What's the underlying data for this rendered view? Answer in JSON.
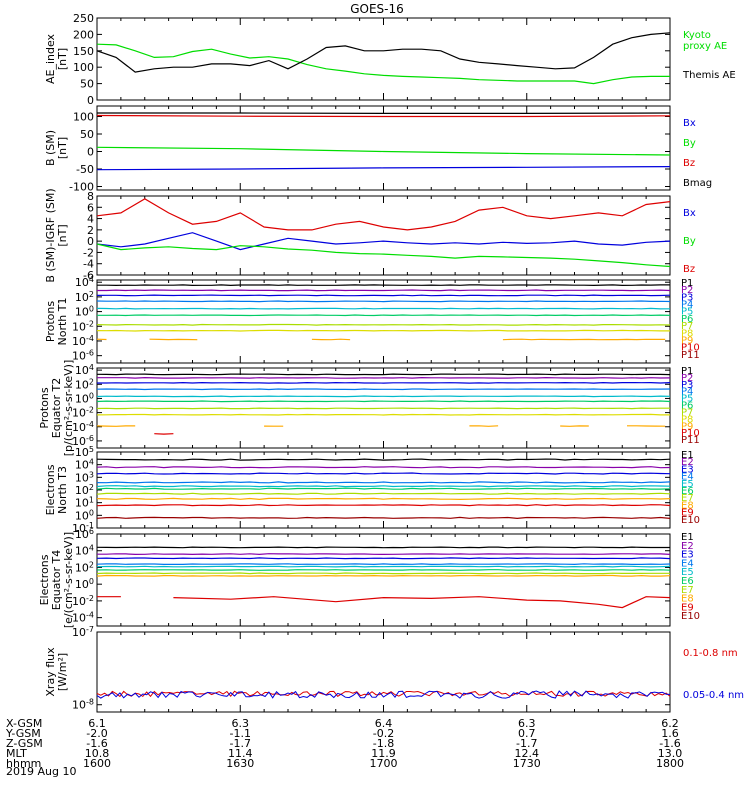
{
  "title": "GOES-16",
  "date": "2019 Aug 10",
  "x_ticks": [
    "1600",
    "1630",
    "1700",
    "1730",
    "1800"
  ],
  "footer_rows": [
    {
      "label": "X-GSM",
      "values": [
        "6.1",
        "6.3",
        "6.4",
        "6.3",
        "6.2"
      ]
    },
    {
      "label": "Y-GSM",
      "values": [
        "-2.0",
        "-1.1",
        "-0.2",
        "0.7",
        "1.6"
      ]
    },
    {
      "label": "Z-GSM",
      "values": [
        "-1.6",
        "-1.7",
        "-1.8",
        "-1.7",
        "-1.6"
      ]
    },
    {
      "label": "MLT",
      "values": [
        "10.8",
        "11.4",
        "11.9",
        "12.4",
        "13.0"
      ]
    },
    {
      "label": "hhmm",
      "values": [
        "1600",
        "1630",
        "1700",
        "1730",
        "1800"
      ]
    }
  ],
  "chart_data": [
    {
      "id": "ae",
      "type": "line",
      "ylabel": [
        "AE_index",
        "[nT]"
      ],
      "ylim": [
        0,
        250
      ],
      "yticks": [
        0,
        50,
        100,
        150,
        200,
        250
      ],
      "yticklabels": [
        "0",
        "50",
        "100",
        "150",
        "200",
        "250"
      ],
      "x": [
        0,
        4,
        8,
        12,
        16,
        20,
        24,
        28,
        32,
        36,
        40,
        44,
        48,
        52,
        56,
        60,
        64,
        68,
        72,
        76,
        80,
        84,
        88,
        92,
        96,
        100,
        104,
        108,
        112,
        116,
        120
      ],
      "series": [
        {
          "name": "Kyoto proxy AE",
          "color": "#00dd00",
          "values": [
            170,
            168,
            150,
            130,
            132,
            148,
            155,
            140,
            128,
            132,
            125,
            108,
            95,
            88,
            80,
            75,
            72,
            70,
            68,
            66,
            62,
            60,
            58,
            58,
            58,
            58,
            50,
            62,
            70,
            72,
            72
          ]
        },
        {
          "name": "Themis AE",
          "color": "#000000",
          "values": [
            150,
            130,
            85,
            95,
            100,
            100,
            110,
            110,
            105,
            120,
            95,
            125,
            160,
            165,
            150,
            150,
            155,
            155,
            150,
            125,
            115,
            110,
            105,
            100,
            95,
            98,
            130,
            170,
            190,
            200,
            205
          ]
        }
      ],
      "legend": [
        {
          "text": [
            "Kyoto",
            "proxy AE"
          ],
          "color": "#00dd00"
        },
        {
          "text": [
            "Themis AE"
          ],
          "color": "#000000"
        }
      ]
    },
    {
      "id": "b_sm",
      "type": "line",
      "ylabel": [
        "B (SM)",
        "[nT]"
      ],
      "ylim": [
        -110,
        130
      ],
      "yticks": [
        -100,
        -50,
        0,
        50,
        100
      ],
      "yticklabels": [
        "-100",
        "-50",
        "0",
        "50",
        "100"
      ],
      "x": [
        0,
        30,
        60,
        90,
        120
      ],
      "series": [
        {
          "name": "Bmag",
          "color": "#000000",
          "values": [
            110,
            110,
            109,
            109,
            110
          ]
        },
        {
          "name": "Bz",
          "color": "#dd0000",
          "values": [
            103,
            101,
            100,
            100,
            102
          ]
        },
        {
          "name": "By",
          "color": "#00dd00",
          "values": [
            12,
            8,
            0,
            -6,
            -10
          ]
        },
        {
          "name": "Bx",
          "color": "#0000dd",
          "values": [
            -52,
            -50,
            -47,
            -45,
            -43
          ]
        }
      ],
      "legend": [
        {
          "text": [
            "Bx"
          ],
          "color": "#0000dd"
        },
        {
          "text": [
            "By"
          ],
          "color": "#00dd00"
        },
        {
          "text": [
            "Bz"
          ],
          "color": "#dd0000"
        },
        {
          "text": [
            "Bmag"
          ],
          "color": "#000000"
        }
      ]
    },
    {
      "id": "b_igrf",
      "type": "line",
      "ylabel": [
        "B (SM)-IGRF (SM)",
        "[nT]"
      ],
      "ylim": [
        -6,
        8
      ],
      "yticks": [
        -6,
        -4,
        -2,
        0,
        2,
        4,
        6,
        8
      ],
      "yticklabels": [
        "-6",
        "-4",
        "-2",
        "0",
        "2",
        "4",
        "6",
        "8"
      ],
      "x": [
        0,
        5,
        10,
        15,
        20,
        25,
        30,
        35,
        40,
        45,
        50,
        55,
        60,
        65,
        70,
        75,
        80,
        85,
        90,
        95,
        100,
        105,
        110,
        115,
        120
      ],
      "series": [
        {
          "name": "Bx",
          "color": "#0000dd",
          "values": [
            -0.5,
            -1,
            -0.5,
            0.5,
            1.5,
            0,
            -1.5,
            -0.5,
            0.5,
            0,
            -0.5,
            -0.3,
            0,
            -0.3,
            -0.5,
            -0.3,
            -0.5,
            -0.2,
            -0.4,
            -0.3,
            0,
            -0.5,
            -0.7,
            -0.2,
            0
          ]
        },
        {
          "name": "By",
          "color": "#00dd00",
          "values": [
            -0.5,
            -1.5,
            -1.2,
            -1,
            -1.3,
            -1.5,
            -0.8,
            -1,
            -1.4,
            -1.6,
            -2,
            -2.2,
            -2.3,
            -2.5,
            -2.7,
            -3,
            -2.7,
            -2.8,
            -2.9,
            -3,
            -3.2,
            -3.5,
            -3.8,
            -4.2,
            -4.5
          ]
        },
        {
          "name": "Bz",
          "color": "#dd0000",
          "values": [
            4.5,
            5,
            7.5,
            5,
            3,
            3.5,
            5,
            2.5,
            2,
            2,
            3,
            3.5,
            2.5,
            2,
            2.5,
            3.5,
            5.5,
            6,
            4.5,
            4,
            4.5,
            5,
            4.5,
            6.5,
            7
          ]
        }
      ],
      "legend": [
        {
          "text": [
            "Bx"
          ],
          "color": "#0000dd"
        },
        {
          "text": [
            "By"
          ],
          "color": "#00dd00"
        },
        {
          "text": [
            "Bz"
          ],
          "color": "#dd0000"
        }
      ]
    },
    {
      "id": "p_north",
      "type": "line",
      "log_scale": true,
      "ylabel": [
        "Protons",
        "North T1"
      ],
      "ylim_exp": [
        -7,
        4.3
      ],
      "yticks_exp": [
        -6,
        -4,
        -2,
        0,
        2,
        4
      ],
      "yticklabels": [
        "10^-6",
        "10^-4",
        "10^-2",
        "10^0",
        "10^2",
        "10^4"
      ],
      "levels": [
        {
          "name": "P1",
          "color": "#000000",
          "exp": 3.6
        },
        {
          "name": "P2",
          "color": "#8800aa",
          "exp": 2.9
        },
        {
          "name": "P3",
          "color": "#0000dd",
          "exp": 2.2
        },
        {
          "name": "P4",
          "color": "#0077ee",
          "exp": 1.4
        },
        {
          "name": "P5",
          "color": "#00bbcc",
          "exp": 0.4
        },
        {
          "name": "P6",
          "color": "#00cc66",
          "exp": -0.5
        },
        {
          "name": "P7",
          "color": "#aadd00",
          "exp": -1.8
        },
        {
          "name": "P8",
          "color": "#dddd00",
          "exp": -2.6
        },
        {
          "name": "P9",
          "color": "#ffaa00",
          "exp": -3.8,
          "segments": [
            [
              0,
              2
            ],
            [
              11,
              22
            ],
            [
              45,
              53
            ],
            [
              85,
              120
            ]
          ]
        },
        {
          "name": "P10",
          "color": "#dd0000",
          "exp": null
        },
        {
          "name": "P11",
          "color": "#990000",
          "exp": null
        }
      ]
    },
    {
      "id": "p_equator",
      "type": "line",
      "log_scale": true,
      "ylabel": [
        "Protons",
        "Equator T2",
        "[p/(cm²-s-sr-keV)]"
      ],
      "ylim_exp": [
        -7,
        4.3
      ],
      "yticks_exp": [
        -6,
        -4,
        -2,
        0,
        2,
        4
      ],
      "yticklabels": [
        "10^-6",
        "10^-4",
        "10^-2",
        "10^0",
        "10^2",
        "10^4"
      ],
      "levels": [
        {
          "name": "P1",
          "color": "#000000",
          "exp": 3.4
        },
        {
          "name": "P2",
          "color": "#8800aa",
          "exp": 2.9
        },
        {
          "name": "P3",
          "color": "#0000dd",
          "exp": 2.2
        },
        {
          "name": "P4",
          "color": "#0077ee",
          "exp": 1.3
        },
        {
          "name": "P5",
          "color": "#00bbcc",
          "exp": 0.3
        },
        {
          "name": "P6",
          "color": "#00cc66",
          "exp": -0.4
        },
        {
          "name": "P7",
          "color": "#aadd00",
          "exp": -1.4
        },
        {
          "name": "P8",
          "color": "#dddd00",
          "exp": -2.3
        },
        {
          "name": "P9",
          "color": "#ffaa00",
          "exp": -3.9,
          "segments": [
            [
              0,
              8
            ],
            [
              35,
              40
            ],
            [
              78,
              84
            ],
            [
              97,
              104
            ],
            [
              111,
              120
            ]
          ]
        },
        {
          "name": "P10",
          "color": "#dd0000",
          "exp": -5,
          "segments": [
            [
              12,
              17
            ]
          ]
        },
        {
          "name": "P11",
          "color": "#990000",
          "exp": null
        }
      ]
    },
    {
      "id": "e_north",
      "type": "line",
      "log_scale": true,
      "ylabel": [
        "Electrons",
        "North T3"
      ],
      "ylim_exp": [
        -1,
        5
      ],
      "yticks_exp": [
        -1,
        0,
        1,
        2,
        3,
        4,
        5
      ],
      "yticklabels": [
        "10^-1",
        "10^0",
        "10^1",
        "10^2",
        "10^3",
        "10^4",
        "10^5"
      ],
      "levels": [
        {
          "name": "E1",
          "color": "#000000",
          "exp": 4.4
        },
        {
          "name": "E2",
          "color": "#8800aa",
          "exp": 3.8
        },
        {
          "name": "E3",
          "color": "#0000dd",
          "exp": 3.3
        },
        {
          "name": "E4",
          "color": "#0077ee",
          "exp": 2.6
        },
        {
          "name": "E5",
          "color": "#00bbcc",
          "exp": 2.3
        },
        {
          "name": "E6",
          "color": "#00cc66",
          "exp": 2.1
        },
        {
          "name": "E7",
          "color": "#aadd00",
          "exp": 1.7
        },
        {
          "name": "E8",
          "color": "#ffaa00",
          "exp": 1.3
        },
        {
          "name": "E9",
          "color": "#dd0000",
          "exp": 0.8
        },
        {
          "name": "E10",
          "color": "#990000",
          "exp": -0.2
        }
      ]
    },
    {
      "id": "e_equator",
      "type": "line",
      "log_scale": true,
      "ylabel": [
        "Electrons",
        "Equator T4",
        "[e/(cm²-s-sr-keV)]"
      ],
      "ylim_exp": [
        -5,
        6
      ],
      "yticks_exp": [
        -4,
        -2,
        0,
        2,
        4,
        6
      ],
      "yticklabels": [
        "10^-4",
        "10^-2",
        "10^0",
        "10^2",
        "10^4",
        "10^6"
      ],
      "levels": [
        {
          "name": "E1",
          "color": "#000000",
          "exp": 4.4
        },
        {
          "name": "E2",
          "color": "#8800aa",
          "exp": 3.6
        },
        {
          "name": "E3",
          "color": "#0000dd",
          "exp": 3.1
        },
        {
          "name": "E4",
          "color": "#0077ee",
          "exp": 2.4
        },
        {
          "name": "E5",
          "color": "#00bbcc",
          "exp": 2.1
        },
        {
          "name": "E6",
          "color": "#00cc66",
          "exp": 1.7
        },
        {
          "name": "E7",
          "color": "#aadd00",
          "exp": 1.3
        },
        {
          "name": "E8",
          "color": "#ffaa00",
          "exp": 1.0
        },
        {
          "name": "E9",
          "color": "#dd0000",
          "exp": -1.8,
          "x": [
            0,
            5,
            6,
            16,
            28,
            37,
            50,
            60,
            70,
            80,
            90,
            97,
            105,
            110,
            115,
            120
          ],
          "values": [
            -1.5,
            -1.5,
            null,
            -1.6,
            -1.8,
            -1.5,
            -2.1,
            -1.6,
            -1.7,
            -1.5,
            -1.9,
            -2.0,
            -2.4,
            -2.8,
            -1.5,
            -1.6
          ]
        },
        {
          "name": "E10",
          "color": "#990000",
          "exp": null
        }
      ]
    },
    {
      "id": "xray",
      "type": "line",
      "log_scale": true,
      "ylabel": [
        "Xray flux",
        "[W/m²]"
      ],
      "ylim_exp": [
        -8.1,
        -7
      ],
      "yticks_exp": [
        -8,
        -7
      ],
      "yticklabels": [
        "10^-8",
        "10^-7"
      ],
      "series": [
        {
          "name": "0.1-0.8 nm",
          "color": "#dd0000",
          "exp": -7.85,
          "amp": 0.035
        },
        {
          "name": "0.05-0.4 nm",
          "color": "#0000dd",
          "exp": -7.86,
          "amp": 0.05
        }
      ],
      "legend": [
        {
          "text": [
            "0.1-0.8 nm"
          ],
          "color": "#dd0000"
        },
        {
          "text": [
            "0.05-0.4 nm"
          ],
          "color": "#0000dd"
        }
      ]
    }
  ]
}
